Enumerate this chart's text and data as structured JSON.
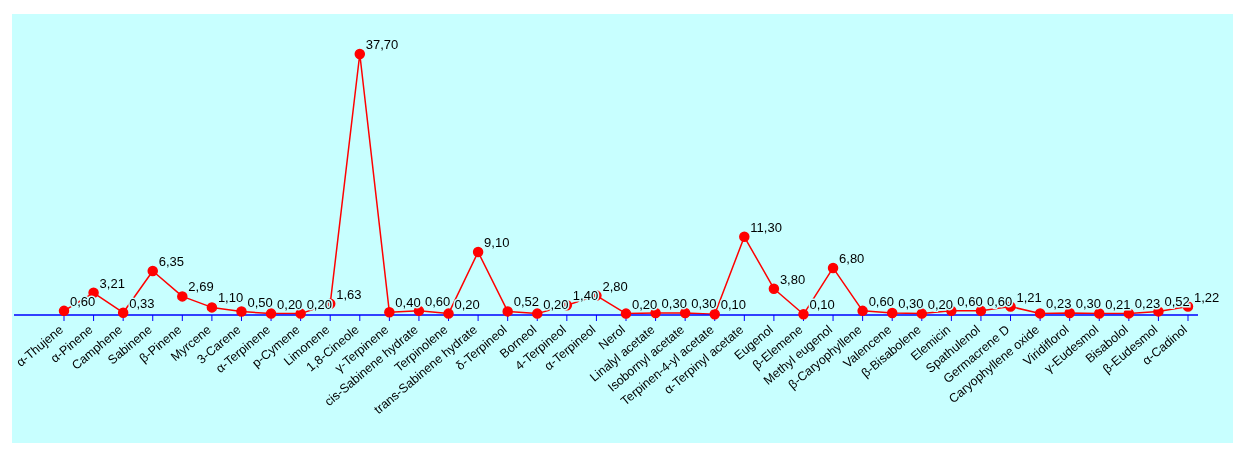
{
  "chart_data": {
    "type": "line",
    "categories": [
      "α-Thujene",
      "α-Pinene",
      "Camphene",
      "Sabinene",
      "β-Pinene",
      "Myrcene",
      "3-Carene",
      "α-Terpinene",
      "p-Cymene",
      "Limonene",
      "1,8-Cineole",
      "γ-Terpinene",
      "cis-Sabinene hydrate",
      "Terpinolene",
      "trans-Sabinene hydrate",
      "δ-Terpineol",
      "Borneol",
      "4-Terpineol",
      "α-Terpineol",
      "Nerol",
      "Linalyl acetate",
      "Isobornyl acetate",
      "Terpinen-4-yl acetate",
      "α-Terpinyl acetate",
      "Eugenol",
      "β-Elemene",
      "Methyl eugenol",
      "β-Caryophyllene",
      "Valencene",
      "β-Bisabolene",
      "Elemicin",
      "Spathulenol",
      "Germacrene D",
      "Caryophyllene oxide",
      "Viridiflorol",
      "γ-Eudesmol",
      "Bisabolol",
      "β-Eudesmol",
      "α-Cadinol"
    ],
    "series": [
      {
        "color": "#ff0000",
        "values": [
          0.6,
          3.21,
          0.33,
          6.35,
          2.69,
          1.1,
          0.5,
          0.2,
          0.2,
          1.63,
          37.7,
          0.4,
          0.6,
          0.2,
          9.1,
          0.52,
          0.2,
          1.4,
          2.8,
          0.2,
          0.3,
          0.3,
          0.1,
          11.3,
          3.8,
          0.1,
          6.8,
          0.6,
          0.3,
          0.2,
          0.6,
          0.6,
          1.21,
          0.23,
          0.3,
          0.21,
          0.23,
          0.52,
          1.22
        ],
        "value_labels": [
          "0,60",
          "3,21",
          "0,33",
          "6,35",
          "2,69",
          "1,10",
          "0,50",
          "0,20",
          "0,20",
          "1,63",
          "37,70",
          "0,40",
          "0,60",
          "0,20",
          "9,10",
          "0,52",
          "0,20",
          "1,40",
          "2,80",
          "0,20",
          "0,30",
          "0,30",
          "0,10",
          "11,30",
          "3,80",
          "0,10",
          "6,80",
          "0,60",
          "0,30",
          "0,20",
          "0,60",
          "0,60",
          "1,21",
          "0,23",
          "0,30",
          "0,21",
          "0,23",
          "0,52",
          "1,22"
        ]
      }
    ],
    "marker": "circle",
    "line_style": "solid",
    "grid": false,
    "legend": false,
    "tick_labels": "x"
  }
}
